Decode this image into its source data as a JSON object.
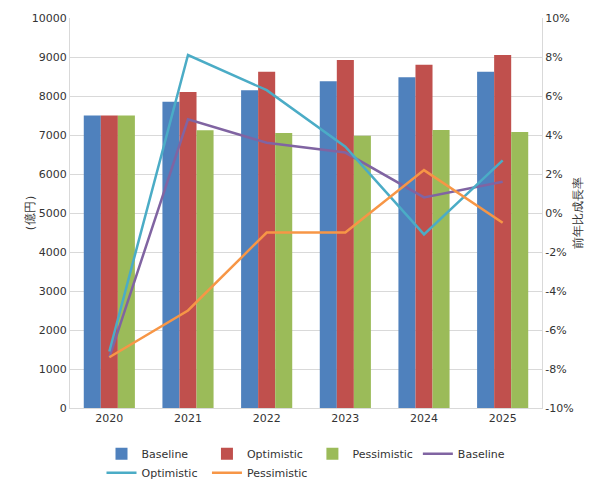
{
  "chart_data": {
    "type": "bar",
    "categories": [
      "2020",
      "2021",
      "2022",
      "2023",
      "2024",
      "2025"
    ],
    "y_label": "（億円）",
    "y2_label": "前年比成長率",
    "ylim": [
      0,
      10000
    ],
    "yticks": [
      0,
      1000,
      2000,
      3000,
      4000,
      5000,
      6000,
      7000,
      8000,
      9000,
      10000
    ],
    "y2lim": [
      -10,
      10
    ],
    "y2ticks": [
      {
        "value": -10,
        "label": "-10%"
      },
      {
        "value": -8,
        "label": "-8%"
      },
      {
        "value": -6,
        "label": "-6%"
      },
      {
        "value": -4,
        "label": "-4%"
      },
      {
        "value": -2,
        "label": "-2%"
      },
      {
        "value": 0,
        "label": "0%"
      },
      {
        "value": 2,
        "label": "2%"
      },
      {
        "value": 4,
        "label": "4%"
      },
      {
        "value": 6,
        "label": "6%"
      },
      {
        "value": 8,
        "label": "8%"
      },
      {
        "value": 10,
        "label": "10%"
      }
    ],
    "grid": true,
    "legend": "bottom",
    "series": [
      {
        "name": "Baseline",
        "type": "bar",
        "color": "#4f81bd",
        "values": [
          7500,
          7850,
          8150,
          8380,
          8480,
          8620
        ]
      },
      {
        "name": "Optimistic",
        "type": "bar",
        "color": "#c0504d",
        "values": [
          7500,
          8100,
          8620,
          8920,
          8800,
          9050
        ]
      },
      {
        "name": "Pessimistic",
        "type": "bar",
        "color": "#9bbb59",
        "values": [
          7500,
          7120,
          7050,
          6980,
          7130,
          7080
        ]
      },
      {
        "name": "Baseline",
        "type": "line",
        "axis": "y2",
        "color": "#8064a2",
        "values": [
          -7.4,
          4.8,
          3.6,
          3.1,
          0.8,
          1.6
        ]
      },
      {
        "name": "Optimistic",
        "type": "line",
        "axis": "y2",
        "color": "#4bacc6",
        "values": [
          -7.1,
          8.1,
          6.3,
          3.4,
          -1.1,
          2.7
        ]
      },
      {
        "name": "Pessimistic",
        "type": "line",
        "axis": "y2",
        "color": "#f79646",
        "values": [
          -7.4,
          -5.0,
          -1.0,
          -1.0,
          2.2,
          -0.5
        ]
      }
    ]
  }
}
